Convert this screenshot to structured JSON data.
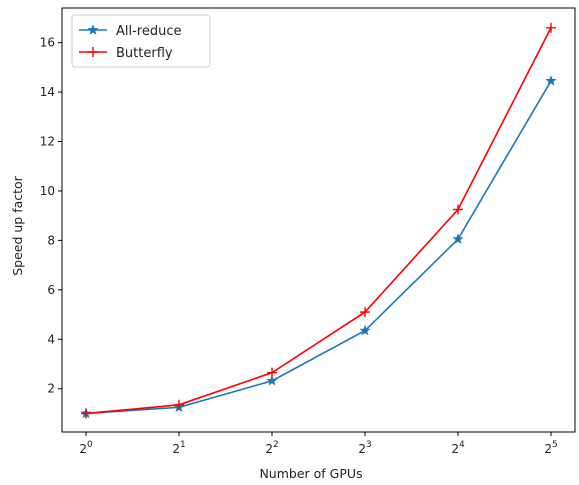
{
  "chart_data": {
    "type": "line",
    "title": "",
    "xlabel": "Number of GPUs",
    "ylabel": "Speed up factor",
    "x": [
      1,
      2,
      4,
      8,
      16,
      32
    ],
    "x_scale": "log2",
    "x_tick_labels": [
      {
        "base": "2",
        "exp": "0"
      },
      {
        "base": "2",
        "exp": "1"
      },
      {
        "base": "2",
        "exp": "2"
      },
      {
        "base": "2",
        "exp": "3"
      },
      {
        "base": "2",
        "exp": "4"
      },
      {
        "base": "2",
        "exp": "5"
      }
    ],
    "y_ticks": [
      2,
      4,
      6,
      8,
      10,
      12,
      14,
      16
    ],
    "ylim": [
      0.25,
      17.4
    ],
    "grid": false,
    "legend_position": "top-left",
    "series": [
      {
        "name": "All-reduce",
        "color": "#1f77b4",
        "marker": "star",
        "values": [
          1.0,
          1.25,
          2.32,
          4.35,
          8.05,
          14.45
        ]
      },
      {
        "name": "Butterfly",
        "color": "#ff0000",
        "marker": "plus",
        "values": [
          1.0,
          1.35,
          2.65,
          5.1,
          9.25,
          16.6
        ]
      }
    ]
  }
}
